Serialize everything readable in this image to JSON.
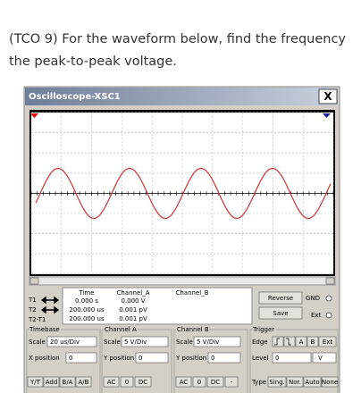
{
  "question": {
    "lines": [
      "(TCO 9) For the waveform below, find the frequency",
      "the peak-to-peak voltage."
    ]
  },
  "window": {
    "title": "Oscilloscope-XSC1",
    "close": "X"
  },
  "readout": {
    "rows": [
      "T1",
      "T2",
      "T2-T1"
    ],
    "headers": [
      "Time",
      "Channel_A",
      "Channel_B"
    ],
    "values": [
      [
        "0.000 s",
        "0.000 V"
      ],
      [
        "200.000 us",
        "0.001 pV"
      ],
      [
        "200.000 us",
        "0.001 pV"
      ]
    ],
    "buttons": [
      "Reverse",
      "Save"
    ],
    "radios": [
      "GND",
      "Ext"
    ]
  },
  "timebase": {
    "title": "Timebase",
    "scale_label": "Scale",
    "scale": "20 us/Div",
    "pos_label": "X position",
    "pos": "0",
    "buttons": [
      "Y/T",
      "Add",
      "B/A",
      "A/B"
    ]
  },
  "channel_a": {
    "title": "Channel A",
    "scale_label": "Scale",
    "scale": "5 V/Div",
    "pos_label": "Y position",
    "pos": "0",
    "buttons": [
      "AC",
      "0",
      "DC"
    ]
  },
  "channel_b": {
    "title": "Channel B",
    "scale_label": "Scale",
    "scale": "5 V/Div",
    "pos_label": "Y position",
    "pos": "0",
    "buttons": [
      "AC",
      "0",
      "DC",
      "-"
    ]
  },
  "trigger": {
    "title": "Trigger",
    "edge_label": "Edge",
    "edge_buttons": [
      "A",
      "B",
      "Ext"
    ],
    "level_label": "Level",
    "level": "0",
    "level_unit": "V",
    "type_label": "Type",
    "type_buttons": [
      "Sing.",
      "Nor.",
      "Auto",
      "None"
    ]
  }
}
